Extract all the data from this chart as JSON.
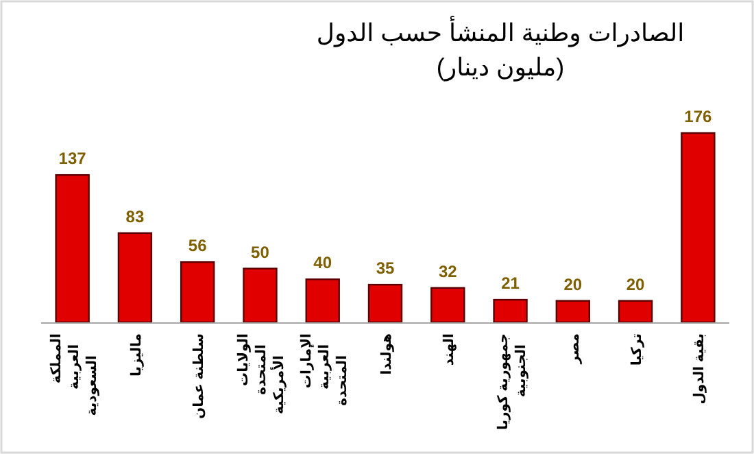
{
  "chart_data": {
    "type": "bar",
    "title": "الصادرات وطنية المنشأ حسب الدول",
    "subtitle": "(مليون دينار)",
    "categories": [
      "المملكة العربية السعودية",
      "ماليزيا",
      "سلطنة عمان",
      "الولايات المتحدة الأمريكية",
      "الإمارات العربية المتحدة",
      "هولندا",
      "الهند",
      "جمهورية كوريا الجنوبية",
      "مصر",
      "تركيا",
      "بقية الدول"
    ],
    "values": [
      137,
      83,
      56,
      50,
      40,
      35,
      32,
      21,
      20,
      20,
      176
    ],
    "color": "#e00000",
    "data_labels": true
  }
}
